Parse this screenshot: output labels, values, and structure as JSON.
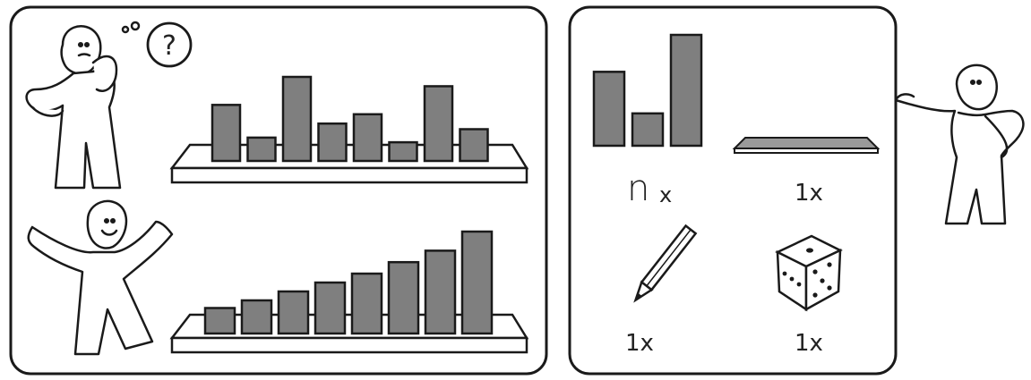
{
  "panels": {
    "left": {
      "scene_top": {
        "thought_symbol": "?",
        "bar_values": [
          6,
          2.5,
          9,
          4,
          5,
          2,
          8,
          3.4
        ]
      },
      "scene_bottom": {
        "bar_values": [
          2,
          2.6,
          3.3,
          4,
          4.7,
          5.6,
          6.5,
          8
        ]
      }
    },
    "right": {
      "items": [
        {
          "name": "bars",
          "quantity_main": "n",
          "quantity_suffix": "x",
          "bar_values": [
            8,
            3.5,
            12
          ]
        },
        {
          "name": "shelf",
          "quantity": "1x"
        },
        {
          "name": "pencil-icon",
          "quantity": "1x"
        },
        {
          "name": "dice-icon",
          "quantity": "1x"
        }
      ]
    }
  },
  "colors": {
    "bar_fill": "#7f7f7f",
    "outline": "#1a1a1a",
    "background": "#ffffff"
  }
}
